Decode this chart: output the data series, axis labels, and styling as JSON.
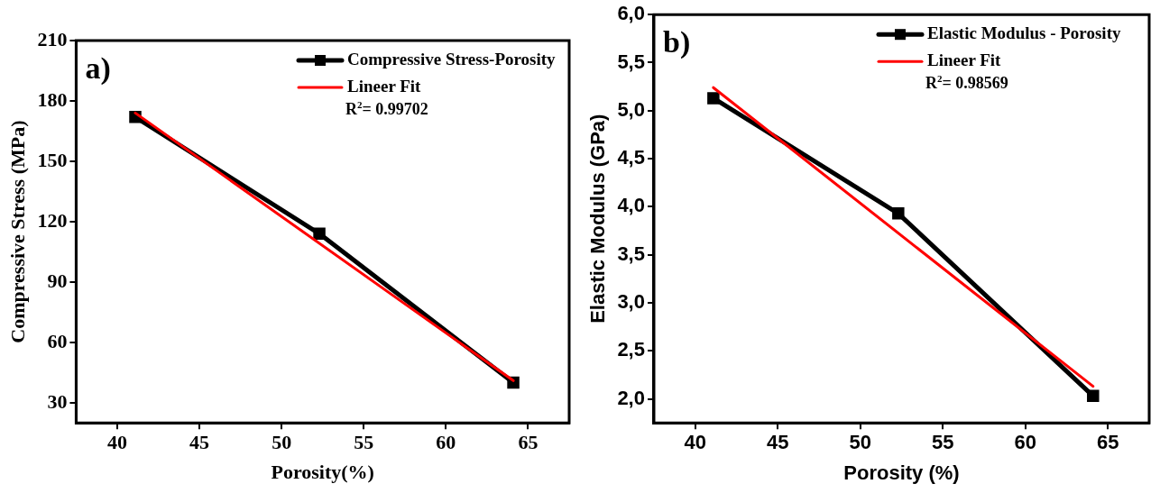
{
  "chart_data": [
    {
      "type": "line",
      "xlabel": "Porosity(%)",
      "ylabel": "Compressive Stress (MPa)",
      "xlim": [
        37.5,
        67.5
      ],
      "xticks": [
        40,
        45,
        50,
        55,
        60,
        65
      ],
      "ylim": [
        20,
        210
      ],
      "yticks": [
        30,
        60,
        90,
        120,
        150,
        180,
        210
      ],
      "grid": false,
      "legend": "top right",
      "annotations": [
        "a)",
        "R$^{2}$= 0.99702"
      ],
      "series": [
        {
          "name": "Compressive Stress-Porosity",
          "color": "#000000",
          "marker": "square",
          "x": [
            41.1,
            52.3,
            64.1
          ],
          "values": [
            172,
            114,
            40
          ]
        },
        {
          "name": "Lineer Fit",
          "color": "#ff0000",
          "marker": "none",
          "x": [
            41.1,
            64.1
          ],
          "values": [
            174,
            41
          ]
        }
      ]
    },
    {
      "type": "line",
      "xlabel": "Porosity (%)",
      "ylabel": "Elastic Modulus (GPa)",
      "xlim": [
        37.5,
        67.5
      ],
      "xticks": [
        40,
        45,
        50,
        55,
        60,
        65
      ],
      "ylim": [
        1.75,
        6.0
      ],
      "yticks": [
        {
          "value": 2,
          "label": "2,0"
        },
        {
          "value": 2.5,
          "label": "2,5"
        },
        {
          "value": 3,
          "label": "3,0"
        },
        {
          "value": 3.5,
          "label": "3,5"
        },
        {
          "value": 4,
          "label": "4,0"
        },
        {
          "value": 4.5,
          "label": "4,5"
        },
        {
          "value": 5,
          "label": "5,0"
        },
        {
          "value": 5.5,
          "label": "5,5"
        },
        {
          "value": 6,
          "label": "6,0"
        }
      ],
      "grid": false,
      "legend": "top right",
      "annotations": [
        "b)",
        "R$^{2}$= 0.98569"
      ],
      "series": [
        {
          "name": "Elastic Modulus - Porosity",
          "color": "#000000",
          "marker": "square",
          "x": [
            41.1,
            52.3,
            64.1
          ],
          "values": [
            5.13,
            3.93,
            2.03
          ]
        },
        {
          "name": "Lineer Fit",
          "color": "#ff0000",
          "marker": "none",
          "x": [
            41.1,
            64.1
          ],
          "values": [
            5.24,
            2.13
          ]
        }
      ]
    }
  ]
}
